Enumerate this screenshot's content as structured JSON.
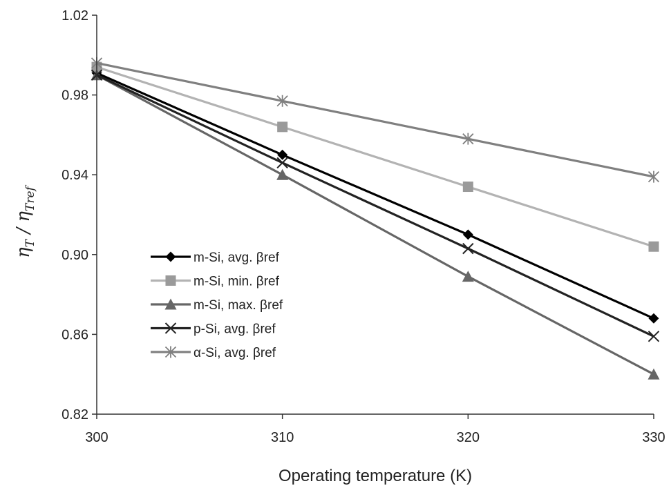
{
  "chart_data": {
    "type": "line",
    "xlabel": "Operating temperature (K)",
    "ylabel": {
      "num_main": "η",
      "num_sub": "T",
      "sep": " / ",
      "den_main": "η",
      "den_sub": "Tref"
    },
    "x": [
      300,
      310,
      320,
      330
    ],
    "xticks": [
      "300",
      "310",
      "320",
      "330"
    ],
    "xlim": [
      300,
      330
    ],
    "ylim": [
      0.82,
      1.02
    ],
    "yticks": [
      0.82,
      0.86,
      0.9,
      0.94,
      0.98,
      1.02
    ],
    "ytick_labels": [
      "0.82",
      "0.86",
      "0.90",
      "0.94",
      "0.98",
      "1.02"
    ],
    "grid": false,
    "legend_position": "lower-left",
    "series": [
      {
        "name": "m-Si, avg. βref",
        "values": [
          0.991,
          0.95,
          0.91,
          0.868
        ],
        "color": "#000000",
        "marker": "diamond"
      },
      {
        "name": "m-Si, min. βref",
        "values": [
          0.994,
          0.964,
          0.934,
          0.904
        ],
        "color": "#9a9a9a",
        "line_color": "#b3b3b3",
        "marker": "square"
      },
      {
        "name": "m-Si, max. βref",
        "values": [
          0.99,
          0.94,
          0.889,
          0.84
        ],
        "color": "#666666",
        "marker": "triangle"
      },
      {
        "name": "p-Si, avg. βref",
        "values": [
          0.99,
          0.946,
          0.903,
          0.859
        ],
        "color": "#222222",
        "marker": "x"
      },
      {
        "name": "α-Si, avg. βref",
        "values": [
          0.996,
          0.977,
          0.958,
          0.939
        ],
        "color": "#808080",
        "marker": "star"
      }
    ]
  }
}
